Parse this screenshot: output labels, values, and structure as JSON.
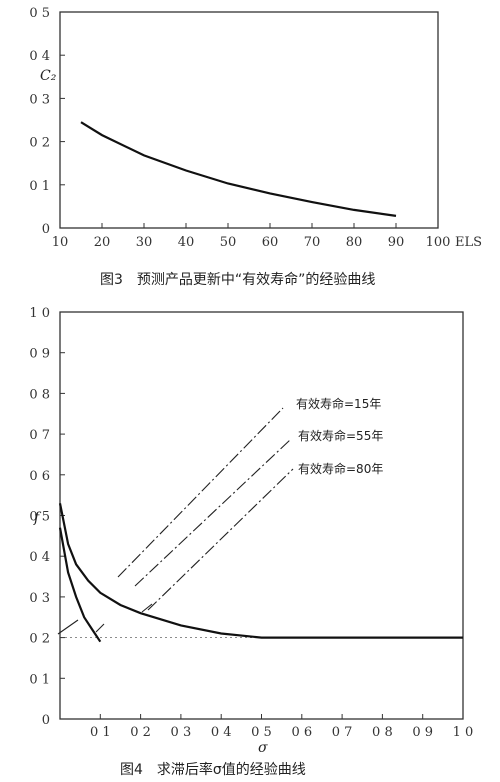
{
  "chart_data": [
    {
      "type": "line",
      "title": "",
      "caption": "图3　预测产品更新中“有效寿命”的经验曲线",
      "xlabel": "ELS",
      "ylabel": "C₂",
      "xlim": [
        10,
        100
      ],
      "ylim": [
        0,
        0.5
      ],
      "xticks": [
        "10",
        "20",
        "30",
        "40",
        "50",
        "60",
        "70",
        "80",
        "90",
        "100"
      ],
      "yticks": [
        "0",
        "0 1",
        "0 2",
        "0 3",
        "0 4",
        "0 5"
      ],
      "grid": false,
      "series": [
        {
          "x": [
            15,
            20,
            30,
            40,
            50,
            60,
            70,
            80,
            90
          ],
          "y": [
            0.245,
            0.215,
            0.168,
            0.133,
            0.103,
            0.08,
            0.06,
            0.042,
            0.028
          ]
        }
      ]
    },
    {
      "type": "line",
      "title": "",
      "caption": "图4　求滞后率σ值的经验曲线",
      "xlabel": "σ",
      "ylabel": "f",
      "xlim": [
        0,
        1.0
      ],
      "ylim": [
        0,
        1.0
      ],
      "xticks": [
        "0 1",
        "0 2",
        "0 3",
        "0 4",
        "0 5",
        "0 6",
        "0 7",
        "0 8",
        "0 9",
        "1 0"
      ],
      "yticks": [
        "0",
        "0 1",
        "0 2",
        "0 3",
        "0 4",
        "0 5",
        "0 6",
        "0 7",
        "0 8",
        "0 9",
        "1 0"
      ],
      "grid": false,
      "reference_line": {
        "y": 0.2
      },
      "annotations": [
        "有效寿命=15年",
        "有效寿命=55年",
        "有效寿命=80年"
      ],
      "series": [
        {
          "x": [
            0.0,
            0.02,
            0.04,
            0.07,
            0.1,
            0.15,
            0.2,
            0.3,
            0.4,
            0.5,
            0.55,
            1.0
          ],
          "y": [
            0.53,
            0.43,
            0.38,
            0.34,
            0.31,
            0.28,
            0.26,
            0.23,
            0.21,
            0.2,
            0.2,
            0.2
          ]
        },
        {
          "x": [
            0.0,
            0.02,
            0.04,
            0.06,
            0.08,
            0.1
          ],
          "y": [
            0.47,
            0.36,
            0.3,
            0.25,
            0.22,
            0.19
          ]
        }
      ]
    }
  ]
}
